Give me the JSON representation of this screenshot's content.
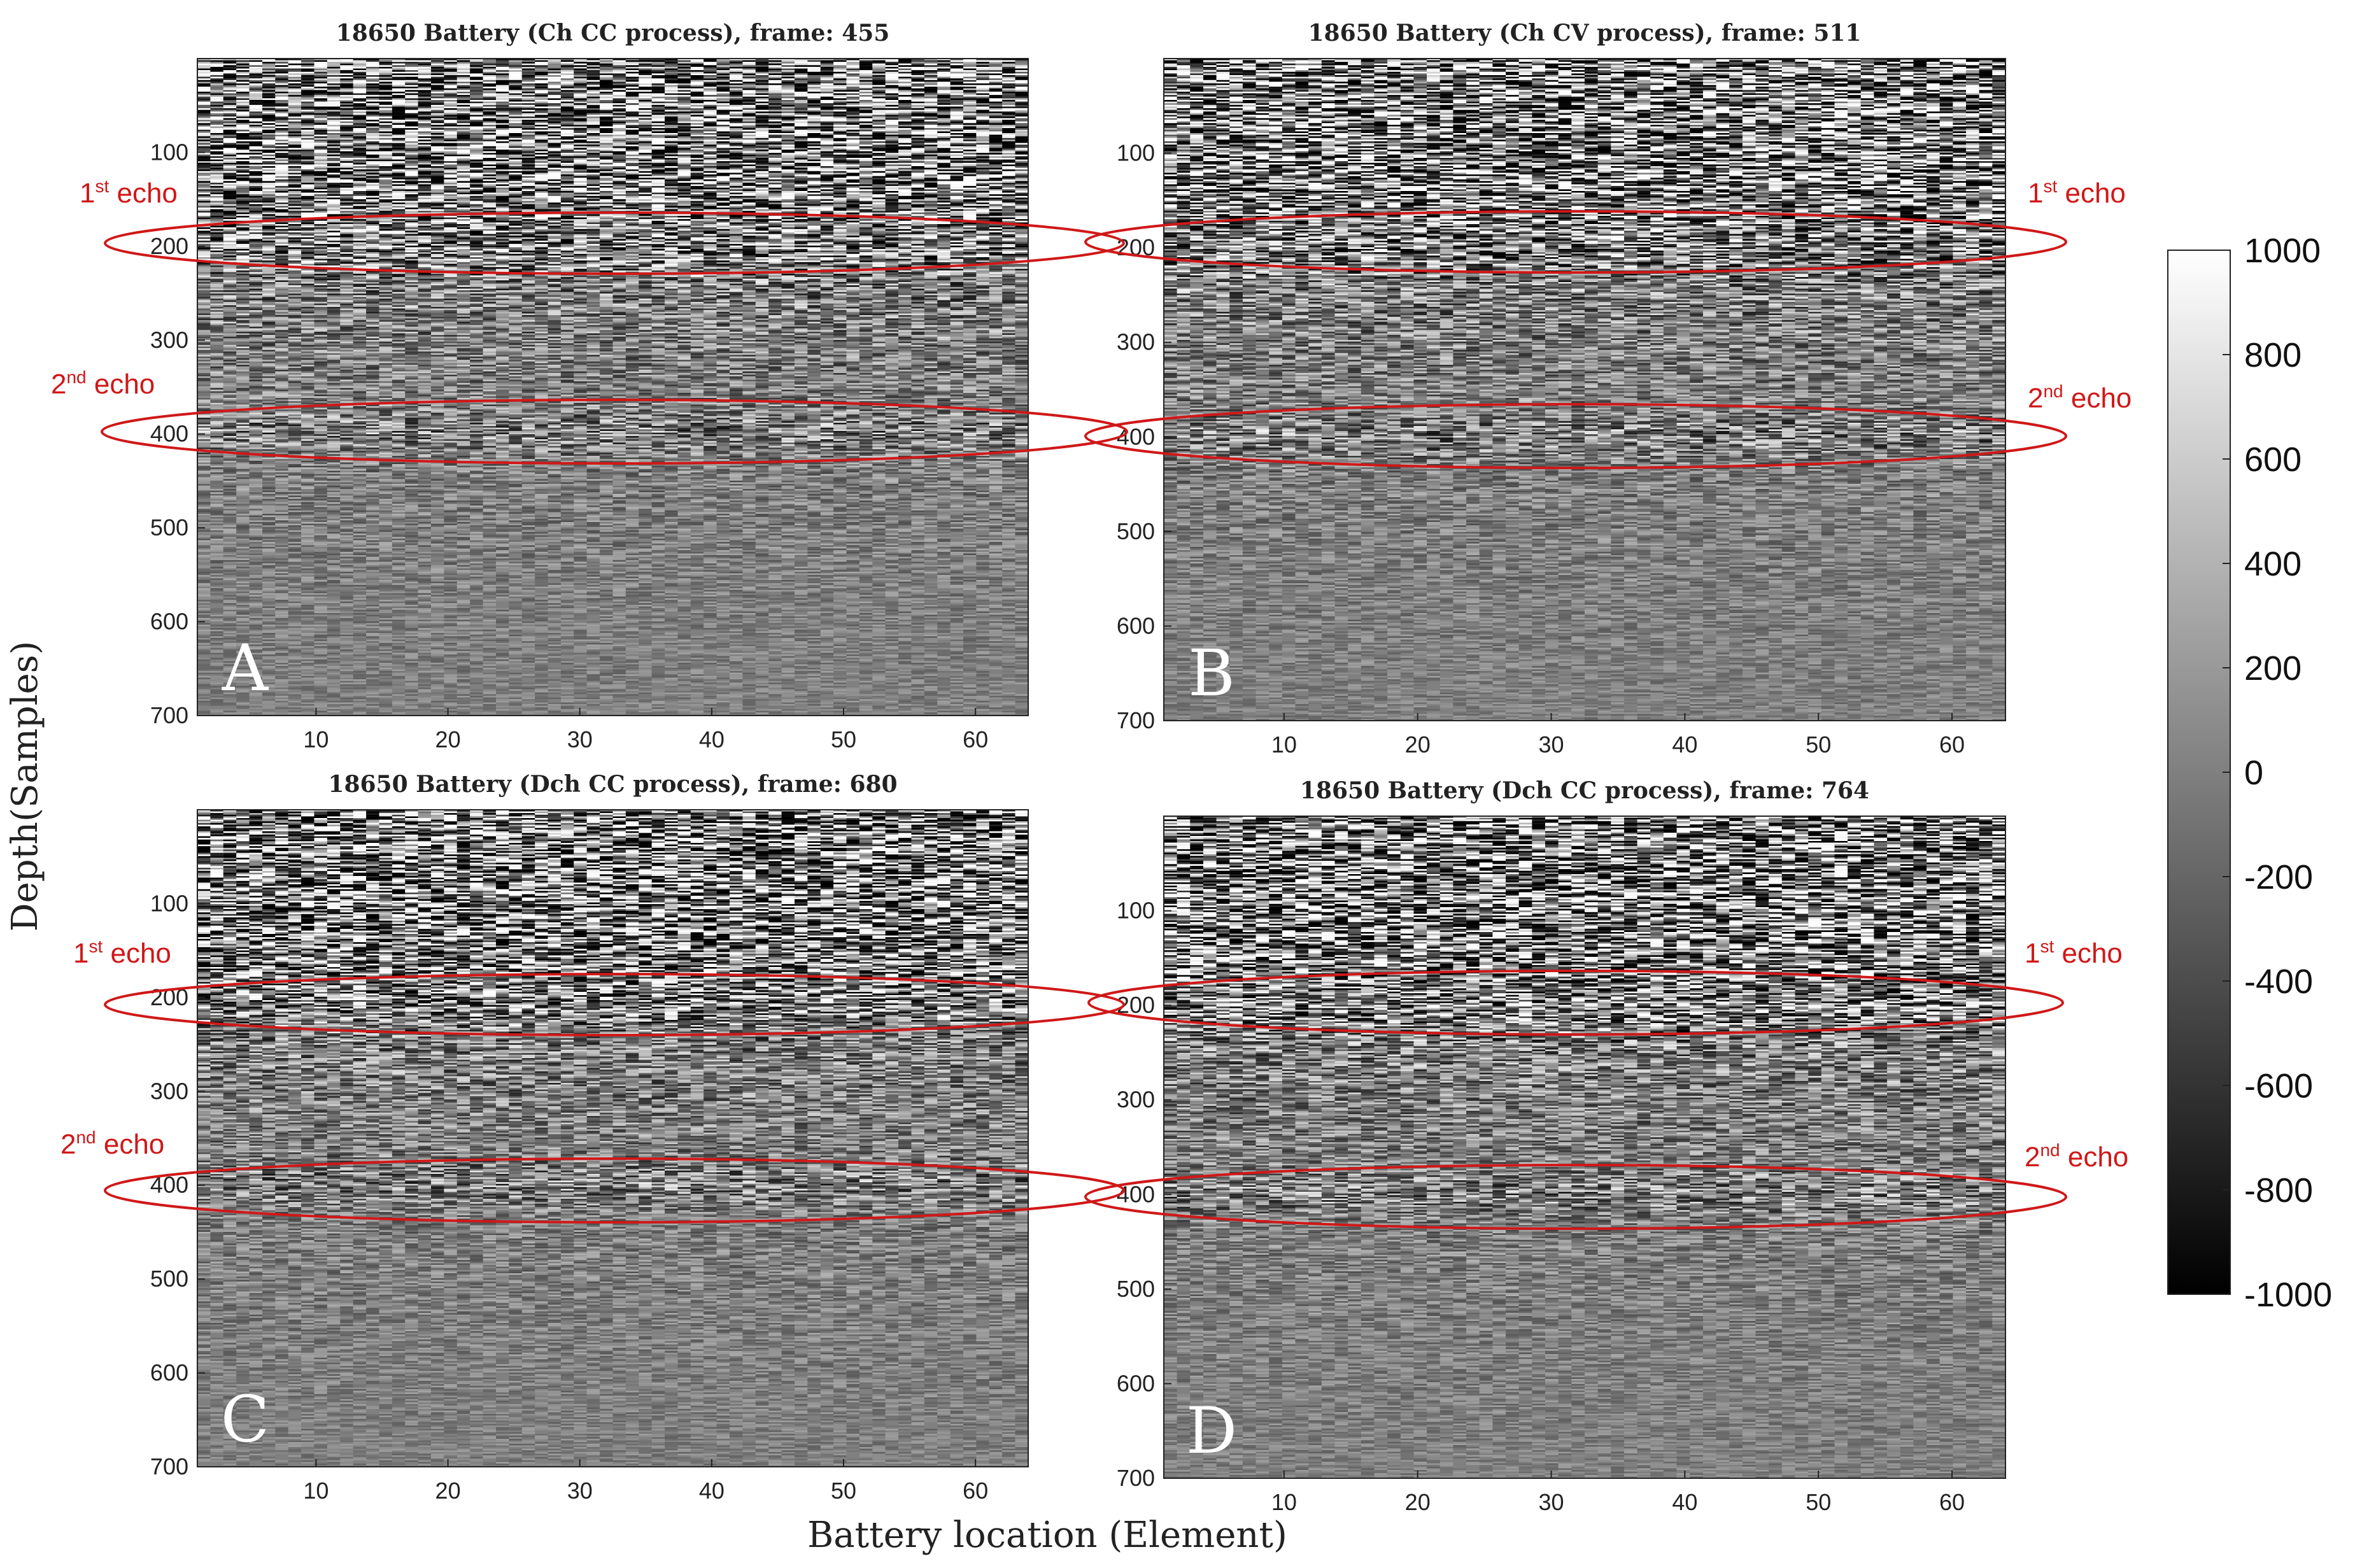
{
  "figure": {
    "ylabel": "Depth(Samples)",
    "xlabel": "Battery location (Element)"
  },
  "colorbar": {
    "range": [
      -1000,
      1000
    ],
    "ticks": [
      "1000",
      "800",
      "600",
      "400",
      "200",
      "0",
      "-200",
      "-400",
      "-600",
      "-800",
      "-1000"
    ],
    "colormap": "gray"
  },
  "echo_labels": {
    "first_base": "1",
    "first_sup": "st",
    "second_base": "2",
    "second_sup": "nd",
    "word": " echo"
  },
  "colors": {
    "ellipse": "#d01818",
    "background": "#ffffff"
  },
  "chart_data": [
    {
      "type": "heatmap",
      "letter": "A",
      "title": "18650 Battery (Ch CC process), frame: 455",
      "xlim": [
        1,
        64
      ],
      "ylim": [
        0,
        700
      ],
      "x_ticks": [
        "10",
        "20",
        "30",
        "40",
        "50",
        "60"
      ],
      "y_ticks": [
        "100",
        "200",
        "300",
        "400",
        "500",
        "600",
        "700"
      ],
      "echo_depths": [
        200,
        400
      ]
    },
    {
      "type": "heatmap",
      "letter": "B",
      "title": "18650 Battery (Ch CV process), frame: 511",
      "xlim": [
        1,
        64
      ],
      "ylim": [
        0,
        700
      ],
      "x_ticks": [
        "10",
        "20",
        "30",
        "40",
        "50",
        "60"
      ],
      "y_ticks": [
        "100",
        "200",
        "300",
        "400",
        "500",
        "600",
        "700"
      ],
      "echo_depths": [
        200,
        400
      ]
    },
    {
      "type": "heatmap",
      "letter": "C",
      "title": "18650 Battery (Dch CC process), frame: 680",
      "xlim": [
        1,
        64
      ],
      "ylim": [
        0,
        700
      ],
      "x_ticks": [
        "10",
        "20",
        "30",
        "40",
        "50",
        "60"
      ],
      "y_ticks": [
        "100",
        "200",
        "300",
        "400",
        "500",
        "600",
        "700"
      ],
      "echo_depths": [
        200,
        400
      ]
    },
    {
      "type": "heatmap",
      "letter": "D",
      "title": "18650 Battery (Dch CC process), frame: 764",
      "xlim": [
        1,
        64
      ],
      "ylim": [
        0,
        700
      ],
      "x_ticks": [
        "10",
        "20",
        "30",
        "40",
        "50",
        "60"
      ],
      "y_ticks": [
        "100",
        "200",
        "300",
        "400",
        "500",
        "600",
        "700"
      ],
      "echo_depths": [
        200,
        400
      ]
    }
  ]
}
